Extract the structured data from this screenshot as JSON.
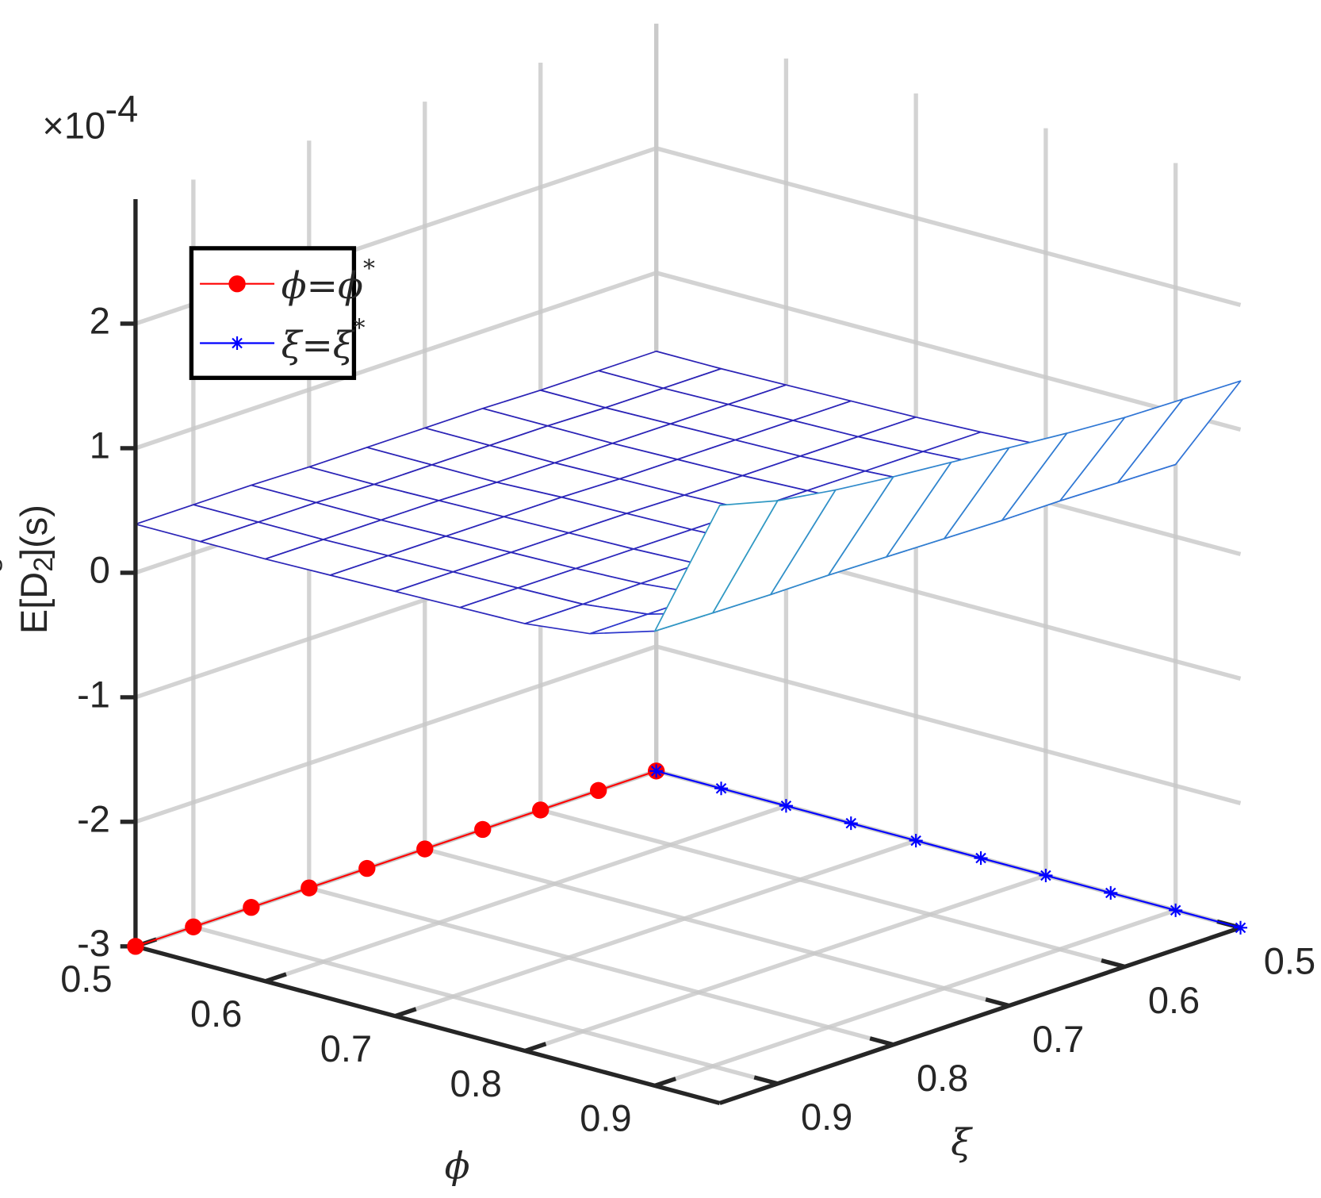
{
  "chart_data": {
    "type": "surface3d",
    "xlabel": "ϕ",
    "ylabel": "ξ",
    "zlabel": [
      "E[D",
      "2",
      "s",
      "](s)"
    ],
    "zexponent": "×10",
    "zexponent_power": "-4",
    "xlim": [
      0.5,
      0.95
    ],
    "ylim": [
      0.5,
      0.95
    ],
    "zlim": [
      -3,
      3
    ],
    "xticks": [
      0.5,
      0.6,
      0.7,
      0.8,
      0.9
    ],
    "yticks": [
      0.5,
      0.6,
      0.7,
      0.8,
      0.9
    ],
    "zticks": [
      -3,
      -2,
      -1,
      0,
      1,
      2
    ],
    "grid": true,
    "surface": {
      "x": [
        0.5,
        0.55,
        0.6,
        0.65,
        0.7,
        0.75,
        0.8,
        0.85,
        0.9,
        0.95
      ],
      "y": [
        0.5,
        0.55,
        0.6,
        0.65,
        0.7,
        0.75,
        0.8,
        0.85,
        0.9,
        0.95
      ],
      "z": [
        [
          0.37,
          0.37,
          0.38,
          0.39,
          0.4,
          0.42,
          0.45,
          0.5,
          0.58,
          1.39
        ],
        [
          0.37,
          0.37,
          0.38,
          0.39,
          0.4,
          0.42,
          0.45,
          0.5,
          0.59,
          1.4
        ],
        [
          0.37,
          0.37,
          0.38,
          0.39,
          0.4,
          0.42,
          0.45,
          0.5,
          0.6,
          1.41
        ],
        [
          0.38,
          0.38,
          0.38,
          0.39,
          0.4,
          0.42,
          0.44,
          0.5,
          0.6,
          1.44
        ],
        [
          0.38,
          0.38,
          0.38,
          0.39,
          0.4,
          0.42,
          0.44,
          0.5,
          0.61,
          1.48
        ],
        [
          0.38,
          0.38,
          0.38,
          0.4,
          0.41,
          0.42,
          0.44,
          0.49,
          0.62,
          1.52
        ],
        [
          0.38,
          0.38,
          0.39,
          0.4,
          0.41,
          0.42,
          0.44,
          0.49,
          0.63,
          1.56
        ],
        [
          0.39,
          0.39,
          0.39,
          0.4,
          0.41,
          0.42,
          0.44,
          0.49,
          0.63,
          1.61
        ],
        [
          0.39,
          0.39,
          0.39,
          0.4,
          0.41,
          0.42,
          0.43,
          0.49,
          0.64,
          1.68
        ],
        [
          0.39,
          0.39,
          0.39,
          0.4,
          0.41,
          0.42,
          0.43,
          0.49,
          0.65,
          1.8
        ]
      ]
    },
    "series": [
      {
        "name": "ϕ=ϕ*",
        "color": "#ff0000",
        "marker": "circle",
        "x": [
          0.5,
          0.5,
          0.5,
          0.5,
          0.5,
          0.5,
          0.5,
          0.5,
          0.5,
          0.5
        ],
        "y": [
          0.5,
          0.55,
          0.6,
          0.65,
          0.7,
          0.75,
          0.8,
          0.85,
          0.9,
          0.95
        ],
        "z": [
          -3,
          -3,
          -3,
          -3,
          -3,
          -3,
          -3,
          -3,
          -3,
          -3
        ]
      },
      {
        "name": "ξ=ξ*",
        "color": "#0000ff",
        "marker": "asterisk",
        "x": [
          0.5,
          0.55,
          0.6,
          0.65,
          0.7,
          0.75,
          0.8,
          0.85,
          0.9,
          0.95
        ],
        "y": [
          0.5,
          0.5,
          0.5,
          0.5,
          0.5,
          0.5,
          0.5,
          0.5,
          0.5,
          0.5
        ],
        "z": [
          -3,
          -3,
          -3,
          -3,
          -3,
          -3,
          -3,
          -3,
          -3,
          -3
        ]
      }
    ]
  }
}
